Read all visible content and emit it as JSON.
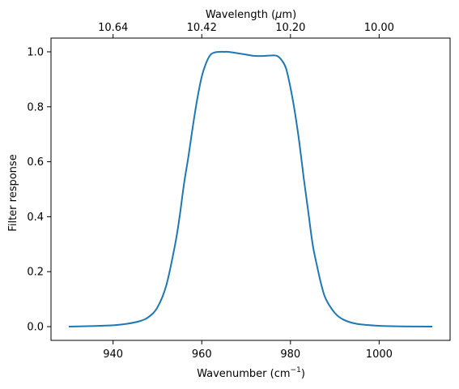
{
  "chart_data": {
    "type": "line",
    "title": "",
    "xlabel": "Wavenumber (cm",
    "xlabel_sup": "−1",
    "xlabel_end": ")",
    "ylabel": "Filter response",
    "top_xlabel": "Wavelength (",
    "top_xlabel_mu": "μ",
    "top_xlabel_end": "m)",
    "xlim": [
      926,
      1016
    ],
    "ylim": [
      -0.05,
      1.05
    ],
    "grid": false,
    "x_ticks": [
      940,
      960,
      980,
      1000
    ],
    "y_ticks": [
      0.0,
      0.2,
      0.4,
      0.6,
      0.8,
      1.0
    ],
    "y_tick_labels": [
      "0.0",
      "0.2",
      "0.4",
      "0.6",
      "0.8",
      "1.0"
    ],
    "top_ticks": [
      {
        "label": "10.64",
        "wavenumber": 940
      },
      {
        "label": "10.42",
        "wavenumber": 960
      },
      {
        "label": "10.20",
        "wavenumber": 980
      },
      {
        "label": "10.00",
        "wavenumber": 1000
      }
    ],
    "series": [
      {
        "color": "#1f77b4",
        "x": [
          930,
          935,
          940,
          943,
          946,
          948,
          950,
          952,
          954,
          955,
          956,
          957,
          958,
          959,
          960,
          961,
          962,
          963,
          964,
          965,
          966,
          968,
          970,
          972,
          974,
          976,
          977,
          978,
          979,
          980,
          981,
          982,
          983,
          984,
          985,
          986,
          987,
          988,
          990,
          992,
          995,
          1000,
          1005,
          1012
        ],
        "y": [
          0.0,
          0.002,
          0.005,
          0.01,
          0.02,
          0.035,
          0.07,
          0.15,
          0.3,
          0.4,
          0.52,
          0.62,
          0.73,
          0.83,
          0.91,
          0.96,
          0.99,
          0.998,
          1.0,
          1.0,
          1.0,
          0.995,
          0.99,
          0.985,
          0.985,
          0.987,
          0.985,
          0.97,
          0.94,
          0.87,
          0.78,
          0.67,
          0.54,
          0.42,
          0.3,
          0.22,
          0.15,
          0.1,
          0.05,
          0.025,
          0.01,
          0.003,
          0.001,
          0.0
        ]
      }
    ]
  }
}
